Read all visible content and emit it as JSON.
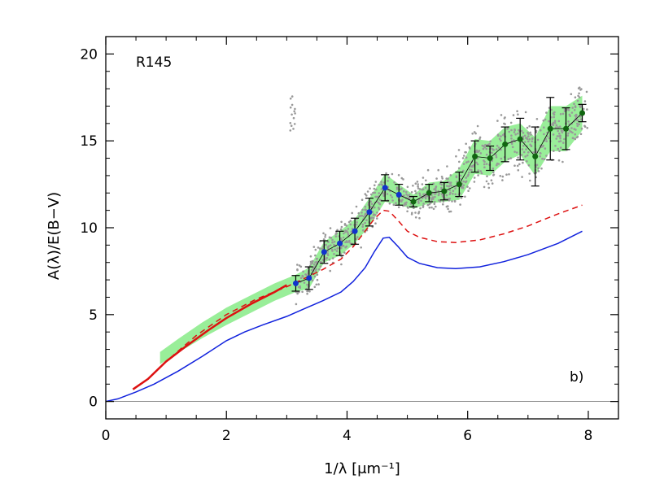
{
  "chart_data": {
    "type": "scatter",
    "xlabel": "1/λ [μm⁻¹]",
    "ylabel": "A(λ)/E(B−V)",
    "xlim": [
      0,
      8.5
    ],
    "ylim": [
      -1,
      21
    ],
    "x_ticks": [
      0,
      2,
      4,
      6,
      8
    ],
    "x_tick_labels": [
      "0",
      "2",
      "4",
      "6",
      "8"
    ],
    "y_ticks": [
      0,
      5,
      10,
      15,
      20
    ],
    "y_tick_labels": [
      "0",
      "5",
      "10",
      "15",
      "20"
    ],
    "grid": false,
    "annotations": {
      "top_left": "R145",
      "bottom_right": "b)"
    },
    "colors": {
      "band": "#99ee99",
      "ir_curve": "#dd1111",
      "blue_model": "#1122dd",
      "dashed_model": "#dd1111",
      "blue_points": "#1133cc",
      "green_points": "#116611",
      "scatter": "#999999",
      "connect": "#000000",
      "zero_line": "#666666"
    },
    "series": [
      {
        "type": "line",
        "role": "blue_model",
        "x": [
          0,
          0.2,
          0.5,
          0.8,
          1.2,
          1.6,
          2.0,
          2.3,
          2.6,
          3.0,
          3.3,
          3.6,
          3.9,
          4.1,
          4.3,
          4.45,
          4.6,
          4.7,
          4.85,
          5.0,
          5.2,
          5.5,
          5.8,
          6.2,
          6.6,
          7.0,
          7.5,
          7.9
        ],
        "y": [
          0,
          0.15,
          0.55,
          1.0,
          1.75,
          2.6,
          3.5,
          4.0,
          4.4,
          4.9,
          5.35,
          5.8,
          6.3,
          6.9,
          7.7,
          8.6,
          9.4,
          9.45,
          8.9,
          8.3,
          7.95,
          7.7,
          7.65,
          7.75,
          8.05,
          8.45,
          9.1,
          9.8
        ]
      },
      {
        "type": "dashed",
        "role": "dashed_model",
        "x": [
          0.45,
          0.7,
          1.0,
          1.5,
          2.0,
          2.5,
          3.0,
          3.3,
          3.6,
          3.9,
          4.1,
          4.3,
          4.45,
          4.6,
          4.7,
          4.85,
          5.0,
          5.2,
          5.5,
          5.8,
          6.2,
          6.6,
          7.0,
          7.5,
          7.9
        ],
        "y": [
          0.7,
          1.3,
          2.3,
          3.8,
          5.0,
          5.9,
          6.6,
          7.1,
          7.6,
          8.2,
          8.9,
          9.8,
          10.5,
          11.0,
          10.95,
          10.4,
          9.8,
          9.45,
          9.2,
          9.15,
          9.3,
          9.65,
          10.1,
          10.8,
          11.3
        ]
      },
      {
        "type": "line",
        "role": "ir_curve",
        "x": [
          0.45,
          0.7,
          1.0,
          1.3,
          1.7,
          2.0,
          2.4,
          2.8,
          3.0
        ],
        "y": [
          0.7,
          1.3,
          2.3,
          3.1,
          4.1,
          4.8,
          5.6,
          6.3,
          6.7
        ]
      },
      {
        "type": "points",
        "role": "blue_points",
        "x": [
          3.15,
          3.37,
          3.62,
          3.88,
          4.13,
          4.37,
          4.63,
          4.86
        ],
        "y": [
          6.8,
          7.1,
          8.6,
          9.1,
          9.8,
          10.9,
          12.3,
          11.9
        ],
        "err": [
          0.45,
          0.65,
          0.65,
          0.7,
          0.75,
          0.8,
          0.75,
          0.6
        ]
      },
      {
        "type": "points",
        "role": "green_points",
        "x": [
          5.1,
          5.36,
          5.61,
          5.86,
          6.12,
          6.37,
          6.62,
          6.87,
          7.12,
          7.37,
          7.63,
          7.9
        ],
        "y": [
          11.5,
          12.0,
          12.1,
          12.5,
          14.1,
          14.0,
          14.8,
          15.1,
          14.1,
          15.7,
          15.7,
          16.6
        ]
      }
    ],
    "band": {
      "x": [
        0.9,
        1.2,
        1.6,
        2.0,
        2.4,
        2.8,
        3.15,
        3.37,
        3.62,
        3.88,
        4.13,
        4.37,
        4.63,
        4.86,
        5.1,
        5.36,
        5.61,
        5.86,
        6.12,
        6.37,
        6.62,
        6.87,
        7.12,
        7.37,
        7.63,
        7.9
      ],
      "y": [
        2.5,
        3.2,
        4.1,
        4.9,
        5.6,
        6.3,
        6.8,
        7.1,
        8.6,
        9.1,
        9.8,
        10.9,
        12.3,
        11.9,
        11.5,
        12.0,
        12.1,
        12.5,
        14.1,
        14.0,
        14.8,
        15.1,
        14.1,
        15.7,
        15.7,
        16.6
      ],
      "half_width": [
        0.35,
        0.4,
        0.45,
        0.5,
        0.5,
        0.5,
        0.5,
        0.6,
        0.6,
        0.7,
        0.7,
        0.8,
        0.8,
        0.6,
        0.4,
        0.6,
        0.6,
        0.9,
        1.0,
        1.0,
        1.0,
        0.9,
        1.1,
        1.3,
        1.3,
        1.0
      ],
      "color": "#99ee99"
    },
    "green_err": [
      0.3,
      0.5,
      0.5,
      0.7,
      0.9,
      0.7,
      1.0,
      1.2,
      1.7,
      1.8,
      1.2,
      0.5
    ]
  }
}
